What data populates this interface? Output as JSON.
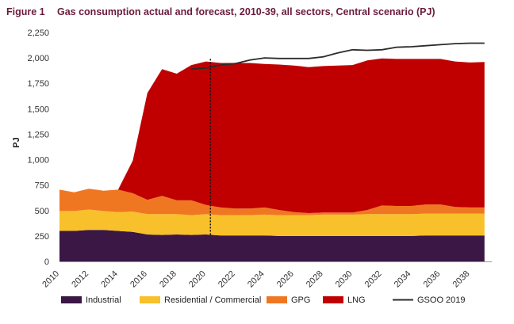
{
  "figure_label": "Figure 1",
  "chart_data": {
    "type": "area",
    "title": "Gas consumption actual and forecast, 2010-39, all sectors, Central scenario (PJ)",
    "xlabel": "",
    "ylabel": "PJ",
    "ylim": [
      0,
      2250
    ],
    "xlim": [
      2010,
      2039.5
    ],
    "yticks": [
      0,
      250,
      500,
      750,
      1000,
      1250,
      1500,
      1750,
      2000,
      2250
    ],
    "ytick_labels": [
      "0",
      "250",
      "500",
      "750",
      "1,000",
      "1,250",
      "1,500",
      "1,750",
      "2,000",
      "2,250"
    ],
    "xticks": [
      2010,
      2012,
      2014,
      2016,
      2018,
      2020,
      2022,
      2024,
      2026,
      2028,
      2030,
      2032,
      2034,
      2036,
      2038
    ],
    "xtick_labels": [
      "2010",
      "2012",
      "2014",
      "2016",
      "2018",
      "2020",
      "2022",
      "2024",
      "2026",
      "2028",
      "2030",
      "2032",
      "2034",
      "2036",
      "2038"
    ],
    "x": [
      2010,
      2011,
      2012,
      2013,
      2014,
      2015,
      2016,
      2017,
      2018,
      2019,
      2020,
      2021,
      2022,
      2023,
      2024,
      2025,
      2026,
      2027,
      2028,
      2029,
      2030,
      2031,
      2032,
      2033,
      2034,
      2035,
      2036,
      2037,
      2038,
      2039
    ],
    "stacked": true,
    "series": [
      {
        "name": "Industrial",
        "color": "#3a1745",
        "values": [
          300,
          300,
          310,
          310,
          300,
          290,
          265,
          260,
          265,
          260,
          265,
          255,
          255,
          255,
          255,
          250,
          250,
          250,
          250,
          250,
          250,
          250,
          250,
          250,
          250,
          255,
          255,
          255,
          255,
          255
        ]
      },
      {
        "name": "Residential / Commercial",
        "color": "#f8c02a",
        "values": [
          195,
          195,
          200,
          185,
          185,
          200,
          200,
          205,
          200,
          195,
          200,
          200,
          200,
          200,
          205,
          205,
          205,
          205,
          210,
          210,
          210,
          215,
          215,
          215,
          215,
          215,
          215,
          215,
          215,
          215
        ]
      },
      {
        "name": "GPG",
        "color": "#f07722",
        "values": [
          210,
          185,
          205,
          200,
          220,
          180,
          140,
          180,
          135,
          145,
          90,
          75,
          65,
          65,
          70,
          50,
          30,
          20,
          20,
          20,
          20,
          40,
          85,
          80,
          80,
          90,
          90,
          65,
          60,
          60
        ]
      },
      {
        "name": "LNG",
        "color": "#c00000",
        "values": [
          0,
          0,
          0,
          0,
          0,
          320,
          1050,
          1245,
          1245,
          1330,
          1410,
          1420,
          1430,
          1430,
          1410,
          1430,
          1440,
          1435,
          1440,
          1445,
          1450,
          1470,
          1445,
          1445,
          1445,
          1430,
          1430,
          1430,
          1425,
          1430
        ]
      }
    ],
    "line_series": {
      "name": "GSOO 2019",
      "color": "#2b2b2b",
      "x": [
        2019,
        2020,
        2021,
        2022,
        2023,
        2024,
        2025,
        2026,
        2027,
        2028,
        2029,
        2030,
        2031,
        2032,
        2033,
        2034,
        2035,
        2036,
        2037,
        2038,
        2039
      ],
      "values": [
        1890,
        1900,
        1930,
        1945,
        1980,
        2000,
        1995,
        1995,
        1995,
        2010,
        2050,
        2080,
        2075,
        2080,
        2105,
        2110,
        2120,
        2130,
        2140,
        2145,
        2145
      ]
    },
    "divider_year": 2020.3,
    "legend_position": "bottom"
  }
}
